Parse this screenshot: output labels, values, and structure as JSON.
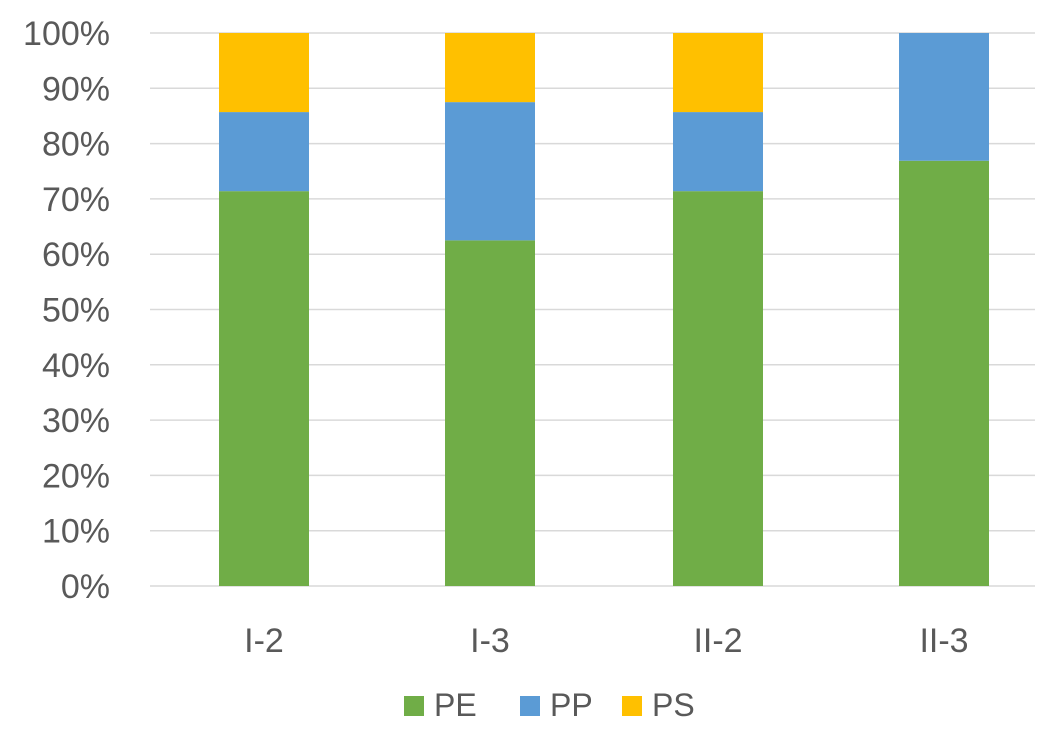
{
  "chart_data": {
    "type": "bar",
    "stacked": true,
    "percent": true,
    "title": "",
    "xlabel": "",
    "ylabel": "",
    "categories": [
      "I-2",
      "I-3",
      "II-2",
      "II-3"
    ],
    "series": [
      {
        "name": "PE",
        "color": "#70ad47",
        "values": [
          71.4,
          62.5,
          71.4,
          76.9
        ]
      },
      {
        "name": "PP",
        "color": "#5b9bd5",
        "values": [
          14.3,
          25.0,
          14.3,
          23.1
        ]
      },
      {
        "name": "PS",
        "color": "#ffc000",
        "values": [
          14.3,
          12.5,
          14.3,
          0
        ]
      }
    ],
    "ylim": [
      0,
      100
    ],
    "yticks": [
      "0%",
      "10%",
      "20%",
      "30%",
      "40%",
      "50%",
      "60%",
      "70%",
      "80%",
      "90%",
      "100%"
    ],
    "grid": true,
    "legend_position": "bottom"
  }
}
